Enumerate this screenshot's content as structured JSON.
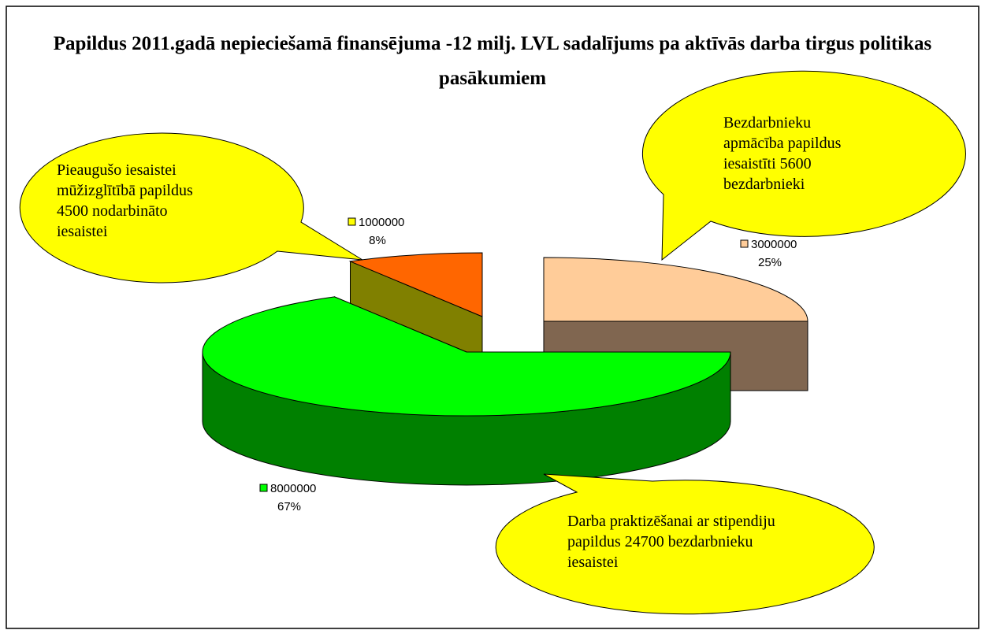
{
  "chart_data": {
    "type": "pie3d",
    "title": "Papildus 2011.gadā nepieciešamā finansējuma -12 milj. LVL sadalījums pa aktīvās darba tirgus politikas pasākumiem",
    "values": [
      3000000,
      8000000,
      1000000
    ],
    "percent_labels": [
      "25%",
      "67%",
      "8%"
    ],
    "colors": [
      "#ffcc99",
      "#00ff00",
      "#ff6600"
    ],
    "side_colors": [
      "#806650",
      "#008000",
      "#808000"
    ],
    "key_colors": [
      "#ffcc99",
      "#00ff00",
      "#ffff00"
    ],
    "annotations": [
      [
        "Bezdarbnieku",
        "apmācība papildus",
        "iesaistīti 5600",
        "bezdarbnieki"
      ],
      [
        "Darba praktizēšanai ar stipendiju",
        "papildus 24700 bezdarbnieku",
        "iesaistei"
      ],
      [
        "Pieaugušo iesaistei",
        "mūžizglītībā papildus",
        "4500 nodarbināto",
        "iesaistei"
      ]
    ]
  }
}
